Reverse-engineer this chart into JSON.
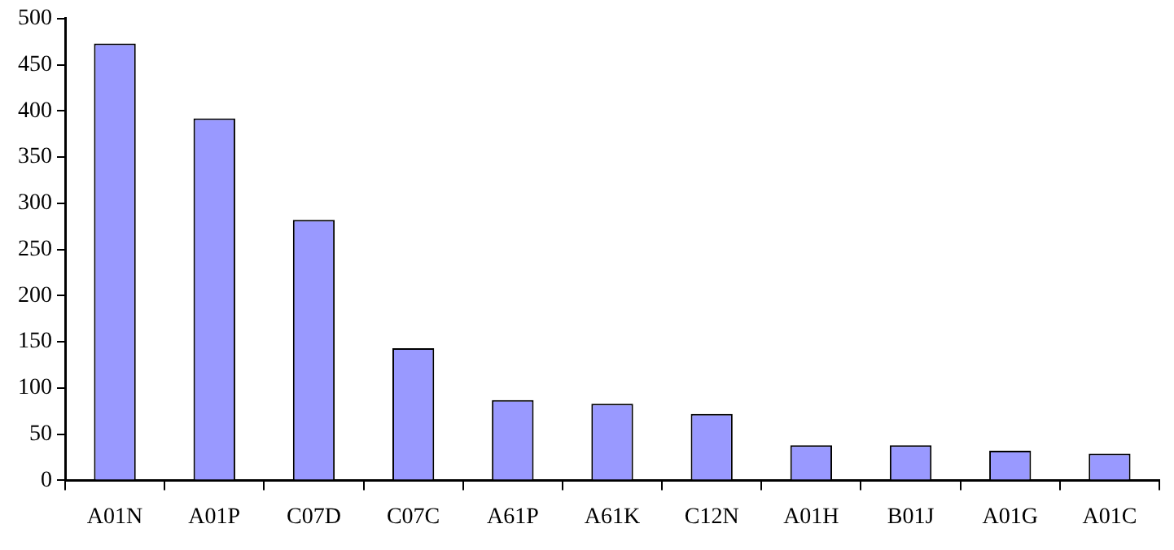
{
  "chart_data": {
    "type": "bar",
    "categories": [
      "A01N",
      "A01P",
      "C07D",
      "C07C",
      "A61P",
      "A61K",
      "C12N",
      "A01H",
      "B01J",
      "A01G",
      "A01C"
    ],
    "values": [
      473,
      392,
      282,
      143,
      87,
      83,
      72,
      38,
      38,
      32,
      29
    ],
    "color": "#9999ff",
    "ylim": [
      0,
      500
    ],
    "yticks": [
      0,
      50,
      100,
      150,
      200,
      250,
      300,
      350,
      400,
      450,
      500
    ],
    "grid": false,
    "legend": false
  }
}
